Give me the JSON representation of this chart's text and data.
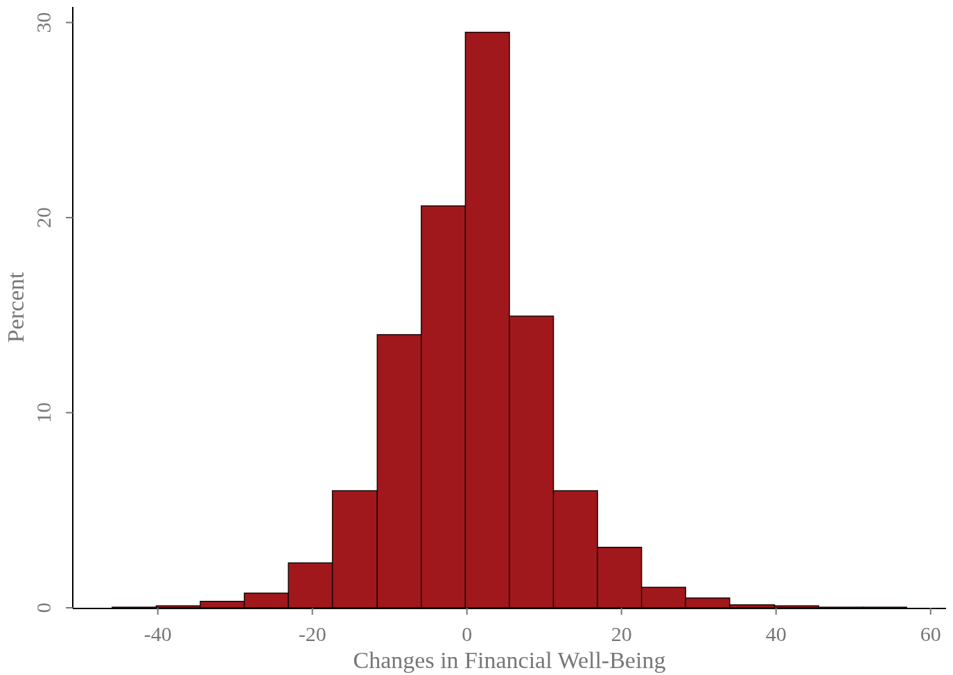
{
  "chart_data": {
    "type": "histogram",
    "xlabel": "Changes in Financial Well-Being",
    "ylabel": "Percent",
    "bins": [
      -45.9,
      -40.2,
      -34.5,
      -28.8,
      -23.1,
      -17.4,
      -11.6,
      -5.9,
      -0.2,
      5.5,
      11.2,
      16.9,
      22.6,
      28.3,
      34.0,
      39.8,
      45.5,
      51.2,
      56.9
    ],
    "values": [
      0.03,
      0.1,
      0.33,
      0.75,
      2.3,
      6.0,
      14.0,
      20.6,
      29.5,
      14.95,
      6.0,
      3.1,
      1.05,
      0.5,
      0.15,
      0.1,
      0.03,
      0.03
    ],
    "color": "#a0181b",
    "xlim": [
      -51,
      62
    ],
    "xticks": [
      -40,
      -20,
      0,
      20,
      40,
      60
    ],
    "ylim": [
      0,
      30.8
    ],
    "yticks": [
      0,
      10,
      20,
      30
    ],
    "grid": false
  }
}
